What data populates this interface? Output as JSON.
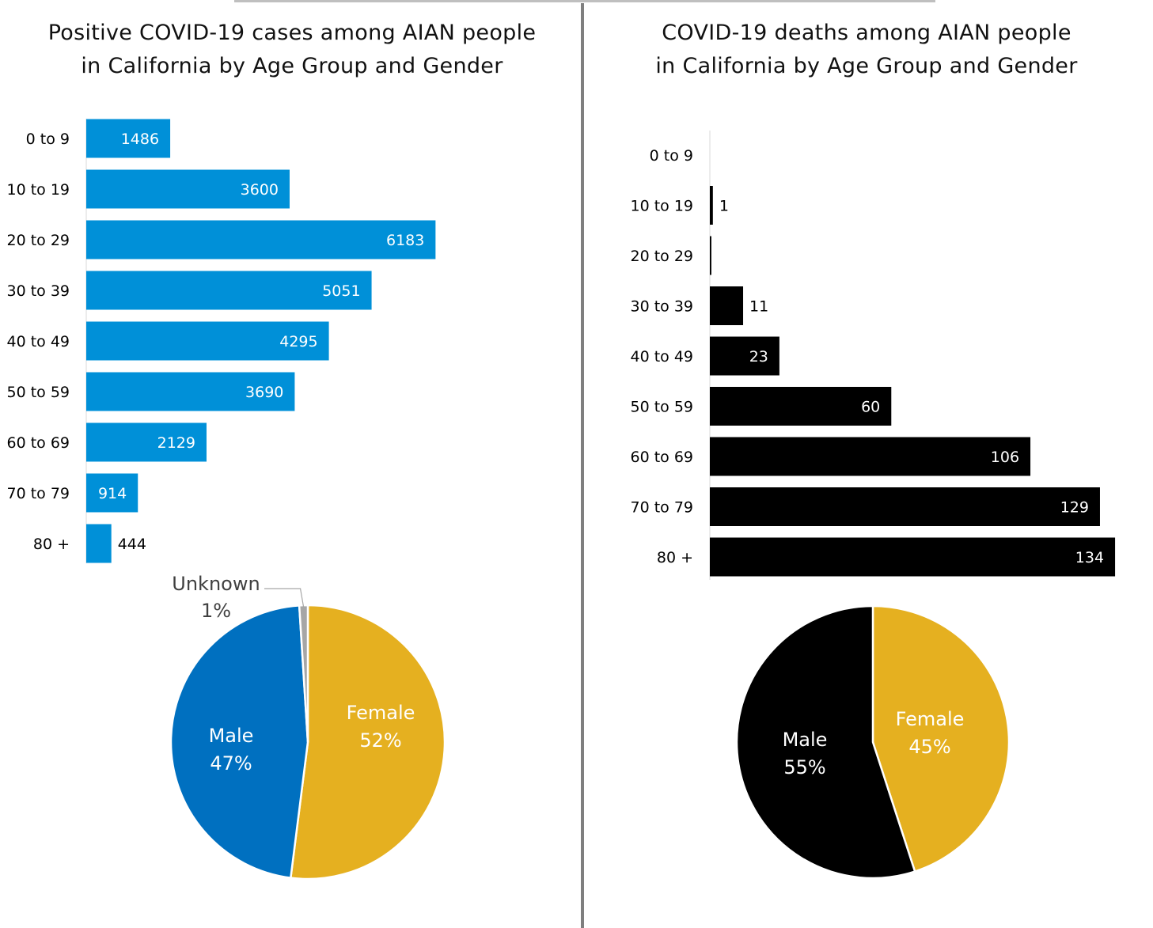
{
  "panels": {
    "cases": {
      "title_line1": "Positive COVID-19 cases among AIAN people",
      "title_line2": "in California by Age Group and Gender"
    },
    "deaths": {
      "title_line1": "COVID-19 deaths among AIAN people",
      "title_line2": "in California by Age Group and Gender"
    }
  },
  "colors": {
    "cases_bar": "#0090d8",
    "deaths_bar": "#000000",
    "male_cases": "#0070c0",
    "male_deaths": "#000000",
    "female": "#e5b020",
    "unknown": "#a6a6a6",
    "axis": "#d9d9d9"
  },
  "chart_data": [
    {
      "type": "bar",
      "orientation": "horizontal",
      "title": "Positive COVID-19 cases among AIAN people in California by Age Group and Gender",
      "categories": [
        "0 to 9",
        "10 to 19",
        "20 to 29",
        "30 to 39",
        "40 to 49",
        "50 to 59",
        "60 to 69",
        "70 to 79",
        "80 +"
      ],
      "values": [
        1486,
        3600,
        6183,
        5051,
        4295,
        3690,
        2129,
        914,
        444
      ],
      "data_labels": [
        "1486",
        "3600",
        "6183",
        "5051",
        "4295",
        "3690",
        "2129",
        "914",
        "444"
      ],
      "xlim": [
        0,
        6500
      ],
      "grid": false
    },
    {
      "type": "bar",
      "orientation": "horizontal",
      "title": "COVID-19 deaths among AIAN people in California by Age Group and Gender",
      "categories": [
        "0 to 9",
        "10 to 19",
        "20 to 29",
        "30 to 39",
        "40 to 49",
        "50 to 59",
        "60 to 69",
        "70 to 79",
        "80 +"
      ],
      "values": [
        0,
        1,
        0.5,
        11,
        23,
        60,
        106,
        129,
        134
      ],
      "data_labels": [
        "",
        "1",
        "",
        "11",
        "23",
        "60",
        "106",
        "129",
        "134"
      ],
      "xlim": [
        0,
        140
      ],
      "grid": false
    },
    {
      "type": "pie",
      "slices": [
        {
          "label": "Female",
          "pct_label": "52%",
          "value": 52
        },
        {
          "label": "Male",
          "pct_label": "47%",
          "value": 47
        },
        {
          "label": "Unknown",
          "pct_label": "1%",
          "value": 1
        }
      ]
    },
    {
      "type": "pie",
      "slices": [
        {
          "label": "Female",
          "pct_label": "45%",
          "value": 45
        },
        {
          "label": "Male",
          "pct_label": "55%",
          "value": 55
        }
      ]
    }
  ]
}
